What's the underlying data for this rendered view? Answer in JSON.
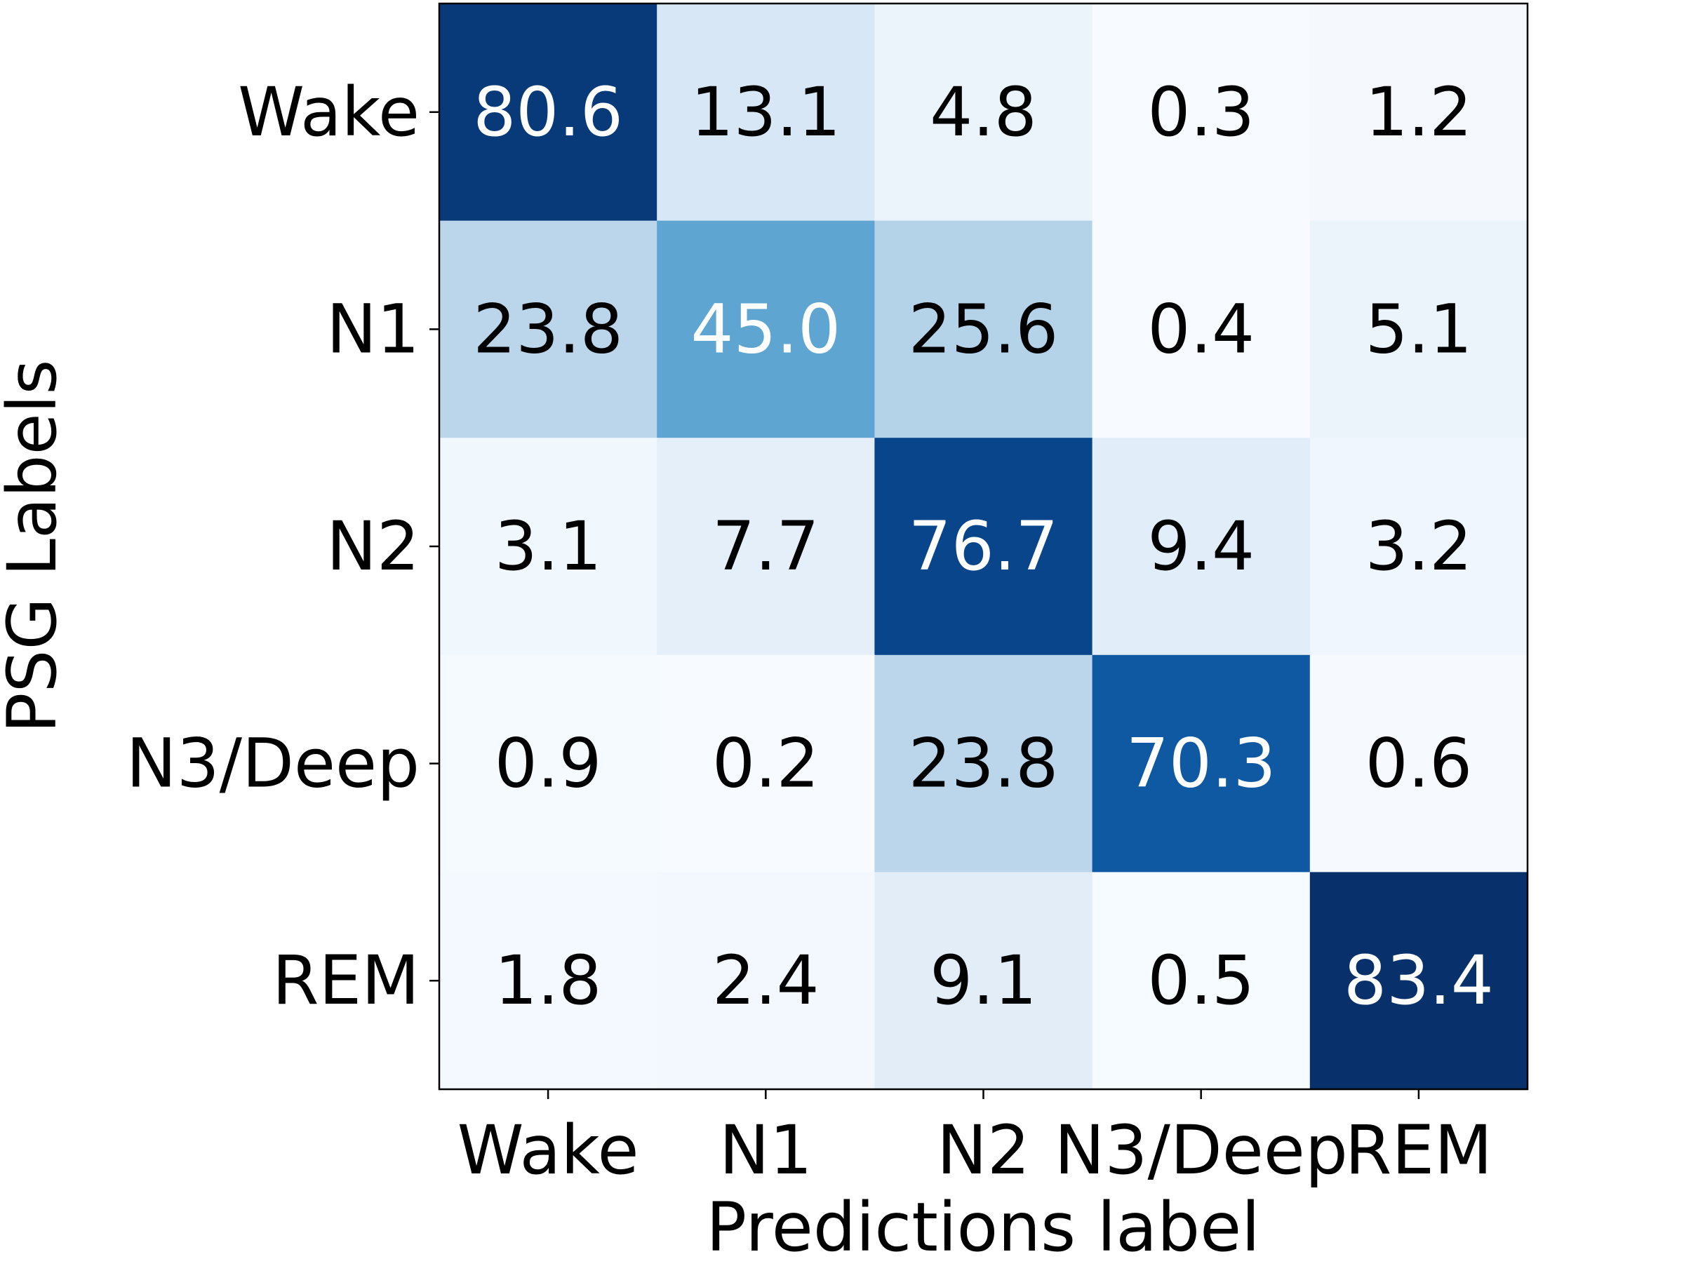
{
  "chart_data": {
    "type": "heatmap",
    "title": "",
    "xlabel": "Predictions label",
    "ylabel": "PSG Labels",
    "x_categories": [
      "Wake",
      "N1",
      "N2",
      "N3/Deep",
      "REM"
    ],
    "y_categories": [
      "Wake",
      "N1",
      "N2",
      "N3/Deep",
      "REM"
    ],
    "values": [
      [
        80.6,
        13.1,
        4.8,
        0.3,
        1.2
      ],
      [
        23.8,
        45.0,
        25.6,
        0.4,
        5.1
      ],
      [
        3.1,
        7.7,
        76.7,
        9.4,
        3.2
      ],
      [
        0.9,
        0.2,
        23.8,
        70.3,
        0.6
      ],
      [
        1.8,
        2.4,
        9.1,
        0.5,
        83.4
      ]
    ],
    "value_labels": [
      [
        "80.6",
        "13.1",
        "4.8",
        "0.3",
        "1.2"
      ],
      [
        "23.8",
        "45.0",
        "25.6",
        "0.4",
        "5.1"
      ],
      [
        "3.1",
        "7.7",
        "76.7",
        "9.4",
        "3.2"
      ],
      [
        "0.9",
        "0.2",
        "23.8",
        "70.3",
        "0.6"
      ],
      [
        "1.8",
        "2.4",
        "9.1",
        "0.5",
        "83.4"
      ]
    ],
    "color_range": [
      0.2,
      83.4
    ],
    "colormap": "Blues",
    "colors": {
      "light_text": "#ffffff",
      "dark_text": "#000000",
      "frame": "#000000"
    },
    "grid": false,
    "legend": "none"
  }
}
